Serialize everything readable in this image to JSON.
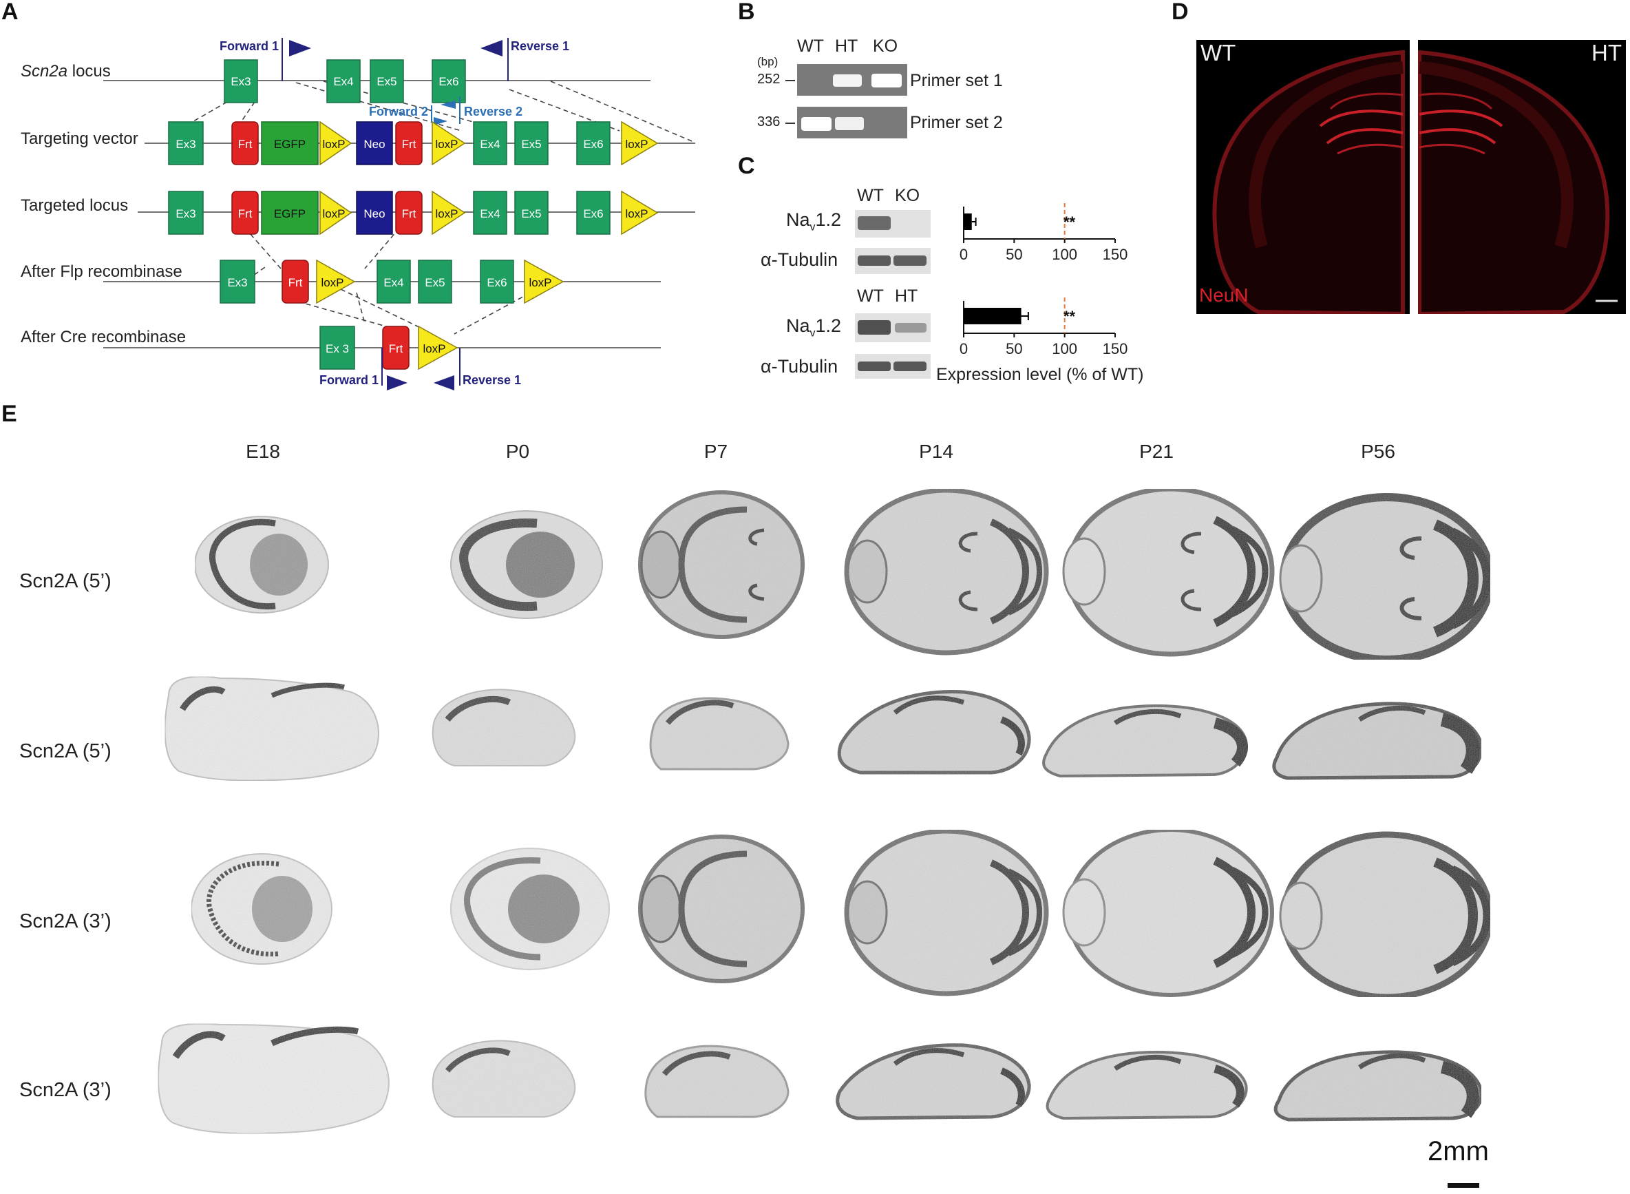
{
  "panels": {
    "a": {
      "letter": "A",
      "rows": [
        {
          "italic": "Scn2a",
          "rest": " locus"
        },
        {
          "text": "Targeting vector"
        },
        {
          "text": "Targeted locus"
        },
        {
          "text": "After Flp recombinase"
        },
        {
          "text": "After Cre recombinase"
        }
      ],
      "primers": {
        "forward1": "Forward 1",
        "reverse1": "Reverse 1",
        "forward2": "Forward 2",
        "reverse2": "Reverse 2"
      },
      "elements": {
        "ex3": "Ex3",
        "ex3_spaced": "Ex 3",
        "ex4": "Ex4",
        "ex5": "Ex5",
        "ex6": "Ex6",
        "frt": "Frt",
        "egfp": "EGFP",
        "loxp": "loxP",
        "neo": "Neo"
      },
      "colors": {
        "exon": "#1f9e62",
        "frt": "#e02424",
        "egfp": "#2aa336",
        "loxp": "#f7e81c",
        "neo": "#1c1c8e",
        "primer_dark": "#23237e",
        "primer_blue": "#2b6fb5"
      }
    },
    "b": {
      "letter": "B",
      "lanes": [
        "WT",
        "HT",
        "KO"
      ],
      "bp_unit": "(bp)",
      "markers": [
        "252",
        "336"
      ],
      "primer_sets": [
        "Primer set 1",
        "Primer set 2"
      ]
    },
    "c": {
      "letter": "C",
      "blot1_lanes": [
        "WT",
        "KO"
      ],
      "blot2_lanes": [
        "WT",
        "HT"
      ],
      "nav_main": "Na",
      "nav_sub": "v",
      "nav_tail": "1.2",
      "tubulin": "α-Tubulin",
      "significance": "**",
      "axis_xlabel": "Expression level (% of WT)",
      "axis_ticks": [
        "0",
        "50",
        "100",
        "150"
      ],
      "chart_data": [
        {
          "type": "bar",
          "orientation": "horizontal",
          "categories": [
            "KO"
          ],
          "values": [
            8
          ],
          "error": [
            4
          ],
          "reference_line": 100,
          "xlim": [
            0,
            150
          ],
          "xticks": [
            0,
            50,
            100,
            150
          ],
          "annotation": "**"
        },
        {
          "type": "bar",
          "orientation": "horizontal",
          "categories": [
            "HT"
          ],
          "values": [
            57
          ],
          "error": [
            7
          ],
          "reference_line": 100,
          "xlim": [
            0,
            150
          ],
          "xticks": [
            0,
            50,
            100,
            150
          ],
          "annotation": "**",
          "xlabel": "Expression level (% of WT)"
        }
      ]
    },
    "d": {
      "letter": "D",
      "left_label": "WT",
      "right_label": "HT",
      "stain": "NeuN",
      "stain_color": "#d8202a"
    },
    "e": {
      "letter": "E",
      "ages": [
        "E18",
        "P0",
        "P7",
        "P14",
        "P21",
        "P56"
      ],
      "rows": [
        "Scn2A (5’)",
        "Scn2A (5’)",
        "Scn2A (3’)",
        "Scn2A (3’)"
      ],
      "scale_label": "2mm"
    }
  }
}
